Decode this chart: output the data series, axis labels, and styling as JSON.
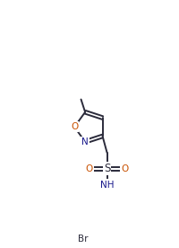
{
  "bg_color": "#ffffff",
  "bond_color": "#2b2b3b",
  "atom_colors": {
    "O": "#c85000",
    "N": "#1a1a8c",
    "S": "#2b2b3b",
    "Br": "#2b2b3b",
    "C": "#2b2b3b"
  },
  "bond_width": 1.4,
  "font_size_atom": 7.5
}
